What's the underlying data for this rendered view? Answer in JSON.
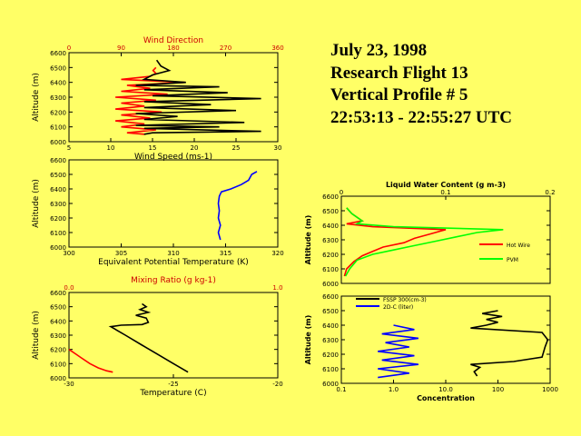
{
  "header": {
    "date": "July 23, 1998",
    "flight": "Research Flight 13",
    "profile": "Vertical Profile # 5",
    "time_range": "22:53:13 - 22:55:27 UTC"
  },
  "colors": {
    "background": "#FFFF66",
    "red": "#FF0000",
    "black": "#000000",
    "blue": "#0000FF",
    "green": "#00FF00",
    "axis_red": "#CC0000"
  },
  "chart_data": [
    {
      "id": "wind",
      "type": "line",
      "title": "Wind Direction",
      "xlabel": "Wind Speed (ms-1)",
      "ylabel": "Altitude (m)",
      "xlim": [
        5,
        30
      ],
      "xticks": [
        "5",
        "10",
        "15",
        "20",
        "25",
        "30"
      ],
      "top_xlim": [
        0,
        360
      ],
      "top_xticks": [
        "0",
        "90",
        "180",
        "270",
        "360"
      ],
      "ylim": [
        6000,
        6600
      ],
      "yticks": [
        "6000",
        "6100",
        "6200",
        "6300",
        "6400",
        "6500",
        "6600"
      ],
      "series": [
        {
          "name": "Wind Direction",
          "color": "#FF0000",
          "axis": "top",
          "points": [
            [
              150,
              6500
            ],
            [
              145,
              6480
            ],
            [
              150,
              6460
            ],
            [
              140,
              6440
            ],
            [
              90,
              6420
            ],
            [
              200,
              6400
            ],
            [
              100,
              6380
            ],
            [
              140,
              6360
            ],
            [
              90,
              6340
            ],
            [
              170,
              6320
            ],
            [
              80,
              6300
            ],
            [
              150,
              6280
            ],
            [
              90,
              6260
            ],
            [
              130,
              6240
            ],
            [
              80,
              6220
            ],
            [
              160,
              6200
            ],
            [
              90,
              6180
            ],
            [
              140,
              6160
            ],
            [
              80,
              6140
            ],
            [
              130,
              6120
            ],
            [
              90,
              6100
            ],
            [
              150,
              6080
            ],
            [
              100,
              6060
            ],
            [
              130,
              6050
            ]
          ]
        },
        {
          "name": "Wind Speed",
          "color": "#000000",
          "axis": "bottom",
          "points": [
            [
              15.5,
              6550
            ],
            [
              16,
              6510
            ],
            [
              17,
              6480
            ],
            [
              15,
              6450
            ],
            [
              14,
              6420
            ],
            [
              19,
              6400
            ],
            [
              13,
              6380
            ],
            [
              23,
              6370
            ],
            [
              14,
              6350
            ],
            [
              24,
              6330
            ],
            [
              15,
              6310
            ],
            [
              28,
              6290
            ],
            [
              14,
              6270
            ],
            [
              22,
              6250
            ],
            [
              14,
              6230
            ],
            [
              25,
              6210
            ],
            [
              13,
              6190
            ],
            [
              18,
              6170
            ],
            [
              14,
              6150
            ],
            [
              26,
              6130
            ],
            [
              13,
              6110
            ],
            [
              23,
              6100
            ],
            [
              14,
              6090
            ],
            [
              28,
              6070
            ],
            [
              15,
              6060
            ],
            [
              14,
              6050
            ]
          ]
        }
      ]
    },
    {
      "id": "theta",
      "type": "line",
      "xlabel": "Equivalent Potential Temperature (K)",
      "ylabel": "Altitude (m)",
      "xlim": [
        300,
        320
      ],
      "xticks": [
        "300",
        "305",
        "310",
        "315",
        "320"
      ],
      "ylim": [
        6000,
        6600
      ],
      "yticks": [
        "6000",
        "6100",
        "6200",
        "6300",
        "6400",
        "6500",
        "6600"
      ],
      "series": [
        {
          "name": "Theta-E",
          "color": "#0000FF",
          "points": [
            [
              314.5,
              6050
            ],
            [
              314.3,
              6100
            ],
            [
              314.5,
              6150
            ],
            [
              314.3,
              6200
            ],
            [
              314.4,
              6250
            ],
            [
              314.3,
              6300
            ],
            [
              314.4,
              6350
            ],
            [
              314.6,
              6380
            ],
            [
              315.5,
              6400
            ],
            [
              316.5,
              6430
            ],
            [
              317.2,
              6460
            ],
            [
              317.5,
              6500
            ],
            [
              318,
              6520
            ]
          ]
        }
      ]
    },
    {
      "id": "temp",
      "type": "line",
      "title": "Mixing Ratio (g kg-1)",
      "xlabel": "Temperature (C)",
      "ylabel": "Altitude (m)",
      "xlim": [
        -30,
        -20
      ],
      "xticks": [
        "-30",
        "-25",
        "-20"
      ],
      "top_xlim": [
        0.0,
        1.0
      ],
      "top_xticks": [
        "0.0",
        "1.0"
      ],
      "ylim": [
        6000,
        6600
      ],
      "yticks": [
        "6000",
        "6100",
        "6200",
        "6300",
        "6400",
        "6500",
        "6600"
      ],
      "series": [
        {
          "name": "Mixing Ratio",
          "color": "#FF0000",
          "axis": "top",
          "points": [
            [
              0.0,
              6200
            ],
            [
              0.03,
              6170
            ],
            [
              0.06,
              6140
            ],
            [
              0.1,
              6100
            ],
            [
              0.14,
              6070
            ],
            [
              0.18,
              6050
            ],
            [
              0.21,
              6040
            ]
          ]
        },
        {
          "name": "Temperature",
          "color": "#000000",
          "axis": "bottom",
          "points": [
            [
              -24.3,
              6040
            ],
            [
              -25,
              6100
            ],
            [
              -25.8,
              6170
            ],
            [
              -26.5,
              6230
            ],
            [
              -27.3,
              6300
            ],
            [
              -28,
              6360
            ],
            [
              -27.5,
              6370
            ],
            [
              -26.5,
              6375
            ],
            [
              -26.2,
              6390
            ],
            [
              -26.3,
              6420
            ],
            [
              -26.8,
              6440
            ],
            [
              -26.2,
              6460
            ],
            [
              -26.6,
              6480
            ],
            [
              -26.3,
              6500
            ],
            [
              -26.5,
              6520
            ]
          ]
        }
      ]
    },
    {
      "id": "lwc",
      "type": "line",
      "title": "Liquid Water Content (g m-3)",
      "ylabel": "Altitude (m)",
      "xlim": [
        0,
        0.2
      ],
      "xticks": [
        "0",
        "0.1",
        "0.2"
      ],
      "ylim": [
        6000,
        6600
      ],
      "yticks": [
        "6000",
        "6100",
        "6200",
        "6300",
        "6400",
        "6500",
        "6600"
      ],
      "legend": [
        {
          "label": "Hot Wire",
          "color": "#FF0000"
        },
        {
          "label": "PVM",
          "color": "#00FF00"
        }
      ],
      "series": [
        {
          "name": "Hot Wire",
          "color": "#FF0000",
          "points": [
            [
              0.005,
              6520
            ],
            [
              0.01,
              6480
            ],
            [
              0.02,
              6430
            ],
            [
              0.005,
              6410
            ],
            [
              0.03,
              6390
            ],
            [
              0.1,
              6370
            ],
            [
              0.085,
              6340
            ],
            [
              0.07,
              6310
            ],
            [
              0.06,
              6280
            ],
            [
              0.04,
              6250
            ],
            [
              0.03,
              6220
            ],
            [
              0.02,
              6190
            ],
            [
              0.012,
              6150
            ],
            [
              0.005,
              6100
            ],
            [
              0.003,
              6050
            ]
          ]
        },
        {
          "name": "PVM",
          "color": "#00FF00",
          "points": [
            [
              0.005,
              6520
            ],
            [
              0.01,
              6480
            ],
            [
              0.02,
              6430
            ],
            [
              0.015,
              6410
            ],
            [
              0.05,
              6390
            ],
            [
              0.155,
              6370
            ],
            [
              0.13,
              6350
            ],
            [
              0.11,
              6320
            ],
            [
              0.09,
              6290
            ],
            [
              0.07,
              6260
            ],
            [
              0.05,
              6230
            ],
            [
              0.03,
              6200
            ],
            [
              0.015,
              6160
            ],
            [
              0.008,
              6100
            ],
            [
              0.004,
              6050
            ]
          ]
        }
      ]
    },
    {
      "id": "conc",
      "type": "line",
      "xlabel": "Concentration",
      "ylabel": "Altitude (m)",
      "xscale": "log",
      "xlim": [
        0.1,
        1000
      ],
      "xticks": [
        "0.1",
        "1.0",
        "10.0",
        "100",
        "1000"
      ],
      "ylim": [
        6000,
        6600
      ],
      "yticks": [
        "6000",
        "6100",
        "6200",
        "6300",
        "6400",
        "6500",
        "6600"
      ],
      "legend": [
        {
          "label": "FSSP 300(cm-3)",
          "color": "#000000"
        },
        {
          "label": "2D-C (liter)",
          "color": "#0000FF"
        }
      ],
      "series": [
        {
          "name": "FSSP 300(cm-3)",
          "color": "#000000",
          "points": [
            [
              40,
              6050
            ],
            [
              35,
              6080
            ],
            [
              45,
              6110
            ],
            [
              30,
              6130
            ],
            [
              200,
              6150
            ],
            [
              700,
              6180
            ],
            [
              800,
              6250
            ],
            [
              900,
              6300
            ],
            [
              700,
              6350
            ],
            [
              30,
              6380
            ],
            [
              60,
              6400
            ],
            [
              100,
              6420
            ],
            [
              60,
              6440
            ],
            [
              120,
              6460
            ],
            [
              50,
              6480
            ],
            [
              100,
              6500
            ]
          ]
        },
        {
          "name": "2D-C (liter)",
          "color": "#0000FF",
          "points": [
            [
              0.5,
              6040
            ],
            [
              2,
              6070
            ],
            [
              0.5,
              6100
            ],
            [
              3,
              6130
            ],
            [
              0.6,
              6160
            ],
            [
              2.5,
              6190
            ],
            [
              0.5,
              6220
            ],
            [
              2,
              6250
            ],
            [
              0.7,
              6280
            ],
            [
              3,
              6310
            ],
            [
              0.6,
              6340
            ],
            [
              2.5,
              6370
            ],
            [
              1,
              6400
            ]
          ]
        }
      ]
    }
  ]
}
